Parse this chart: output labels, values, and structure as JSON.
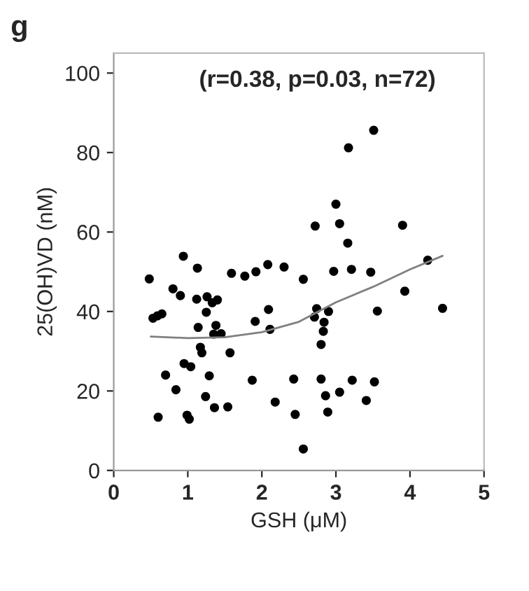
{
  "chart_data": {
    "type": "scatter",
    "title": "g",
    "xlabel": "GSH (μM)",
    "ylabel": "25(OH)VD (nM)",
    "annotations": [
      "(r=0.38, p=0.03, n=72)"
    ],
    "xlim": [
      0,
      5
    ],
    "xticks": [
      0,
      1,
      2,
      3,
      4,
      5
    ],
    "ylim": [
      0,
      105
    ],
    "yticks": [
      0,
      20,
      40,
      60,
      80,
      100
    ],
    "grid": false,
    "legend": false,
    "marker": "circle",
    "series": [
      {
        "color": "#000000",
        "x": [
          0.48,
          0.94,
          1.13,
          1.59,
          1.77,
          1.92,
          2.08,
          2.3,
          2.56,
          0.8,
          0.9,
          1.12,
          1.26,
          1.4,
          1.33,
          0.53,
          0.59,
          0.65,
          1.25,
          2.09,
          1.91,
          2.11,
          1.14,
          1.38,
          1.35,
          1.45,
          1.17,
          1.19,
          1.57,
          0.95,
          1.04,
          0.7,
          1.29,
          1.87,
          2.43,
          0.84,
          1.24,
          2.18,
          0.6,
          0.99,
          1.02,
          1.36,
          1.54,
          2.45,
          2.56,
          3.51,
          3.17,
          3.0,
          2.72,
          3.05,
          3.9,
          3.16,
          2.97,
          3.21,
          3.47,
          4.24,
          3.93,
          2.74,
          2.71,
          2.9,
          2.84,
          2.83,
          2.8,
          3.56,
          4.44,
          2.8,
          3.22,
          3.52,
          2.86,
          3.05,
          3.41,
          2.89
        ],
        "values": [
          48.2,
          53.9,
          50.9,
          49.6,
          48.9,
          50.0,
          51.8,
          51.2,
          48.1,
          45.7,
          44.0,
          43.1,
          43.7,
          42.9,
          42.2,
          38.3,
          38.9,
          39.4,
          39.8,
          40.5,
          37.5,
          35.5,
          36.0,
          36.5,
          34.3,
          34.4,
          31.0,
          29.6,
          29.6,
          26.9,
          26.1,
          24.0,
          23.8,
          22.7,
          23.0,
          20.3,
          18.6,
          17.2,
          13.4,
          13.9,
          12.9,
          15.8,
          16.0,
          14.1,
          5.4,
          85.6,
          81.2,
          67.0,
          61.5,
          62.1,
          61.7,
          57.2,
          50.1,
          50.6,
          49.9,
          52.9,
          45.1,
          40.7,
          38.6,
          40.0,
          37.3,
          35.0,
          31.7,
          40.1,
          40.8,
          23.0,
          22.7,
          22.3,
          18.8,
          19.7,
          17.6,
          14.7
        ]
      },
      {
        "type": "line",
        "color": "#808080",
        "line_style": "solid",
        "marker": "none",
        "x": [
          0.5,
          1.0,
          1.5,
          2.0,
          2.5,
          3.0,
          3.5,
          4.0,
          4.44
        ],
        "values": [
          33.7,
          33.3,
          33.5,
          34.8,
          37.4,
          42.3,
          46.2,
          50.6,
          54.0
        ]
      }
    ]
  }
}
